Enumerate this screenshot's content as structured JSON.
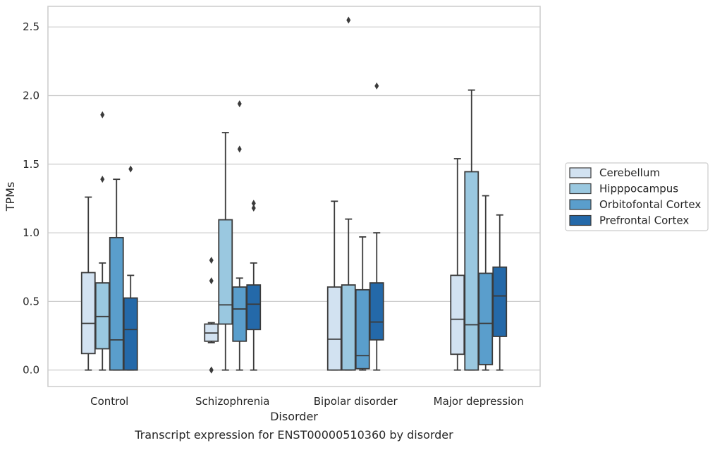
{
  "chart_data": {
    "type": "box",
    "title": "",
    "caption": "Transcript expression for ENST00000510360 by disorder",
    "xlabel": "Disorder",
    "ylabel": "TPMs",
    "ylim": [
      -0.12,
      2.65
    ],
    "yticks": [
      "0.0",
      "0.5",
      "1.0",
      "1.5",
      "2.0",
      "2.5"
    ],
    "ytick_values": [
      0,
      0.5,
      1.0,
      1.5,
      2.0,
      2.5
    ],
    "grid": "horizontal",
    "legend_position": "right",
    "categories": [
      "Control",
      "Schizophrenia",
      "Bipolar disorder",
      "Major depression"
    ],
    "series": [
      {
        "name": "Cerebellum",
        "color": "#d2e2f1",
        "boxes": [
          {
            "whislo": 0.0,
            "q1": 0.12,
            "med": 0.34,
            "q3": 0.71,
            "whishi": 1.26,
            "fliers": []
          },
          {
            "whislo": 0.2,
            "q1": 0.21,
            "med": 0.27,
            "q3": 0.335,
            "whishi": 0.345,
            "fliers": [
              0.8,
              0.65,
              0.0,
              0.0
            ]
          },
          {
            "whislo": 0.0,
            "q1": 0.0,
            "med": 0.225,
            "q3": 0.605,
            "whishi": 1.23,
            "fliers": []
          },
          {
            "whislo": 0.0,
            "q1": 0.115,
            "med": 0.37,
            "q3": 0.69,
            "whishi": 1.54,
            "fliers": []
          }
        ]
      },
      {
        "name": "Hipppocampus",
        "color": "#9ac8e0",
        "boxes": [
          {
            "whislo": 0.0,
            "q1": 0.155,
            "med": 0.39,
            "q3": 0.635,
            "whishi": 0.78,
            "fliers": [
              1.86,
              1.39
            ]
          },
          {
            "whislo": 0.0,
            "q1": 0.335,
            "med": 0.475,
            "q3": 1.095,
            "whishi": 1.73,
            "fliers": []
          },
          {
            "whislo": 0.0,
            "q1": 0.0,
            "med": 0.0,
            "q3": 0.62,
            "whishi": 1.1,
            "fliers": [
              2.55
            ]
          },
          {
            "whislo": 0.0,
            "q1": 0.0,
            "med": 0.33,
            "q3": 1.445,
            "whishi": 2.04,
            "fliers": []
          }
        ]
      },
      {
        "name": "Orbitofontal Cortex",
        "color": "#5a9ecc",
        "boxes": [
          {
            "whislo": 0.0,
            "q1": 0.0,
            "med": 0.22,
            "q3": 0.965,
            "whishi": 1.39,
            "fliers": []
          },
          {
            "whislo": 0.0,
            "q1": 0.21,
            "med": 0.445,
            "q3": 0.605,
            "whishi": 0.67,
            "fliers": [
              1.94,
              1.61
            ]
          },
          {
            "whislo": 0.0,
            "q1": 0.01,
            "med": 0.105,
            "q3": 0.585,
            "whishi": 0.97,
            "fliers": []
          },
          {
            "whislo": 0.0,
            "q1": 0.04,
            "med": 0.34,
            "q3": 0.705,
            "whishi": 1.27,
            "fliers": []
          }
        ]
      },
      {
        "name": "Prefrontal Cortex",
        "color": "#2469a9",
        "boxes": [
          {
            "whislo": 0.0,
            "q1": 0.0,
            "med": 0.295,
            "q3": 0.525,
            "whishi": 0.69,
            "fliers": [
              1.465
            ]
          },
          {
            "whislo": 0.0,
            "q1": 0.295,
            "med": 0.48,
            "q3": 0.62,
            "whishi": 0.78,
            "fliers": [
              1.215,
              1.18
            ]
          },
          {
            "whislo": 0.0,
            "q1": 0.22,
            "med": 0.35,
            "q3": 0.635,
            "whishi": 1.0,
            "fliers": [
              2.07
            ]
          },
          {
            "whislo": 0.0,
            "q1": 0.245,
            "med": 0.54,
            "q3": 0.75,
            "whishi": 1.13,
            "fliers": []
          }
        ]
      }
    ]
  }
}
